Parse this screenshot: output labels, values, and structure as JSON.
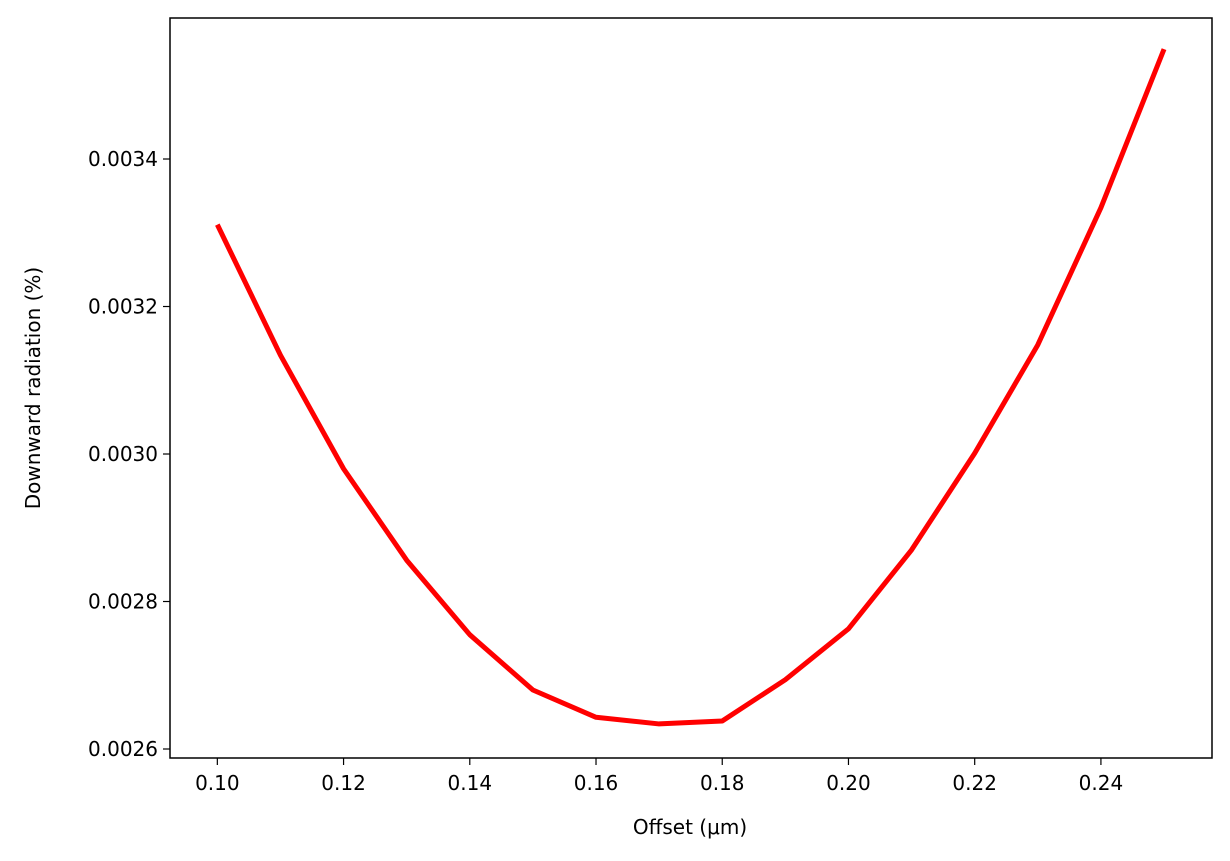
{
  "chart_data": {
    "type": "line",
    "x": [
      0.1,
      0.11,
      0.12,
      0.13,
      0.14,
      0.15,
      0.16,
      0.17,
      0.18,
      0.19,
      0.2,
      0.21,
      0.22,
      0.23,
      0.24,
      0.25
    ],
    "series": [
      {
        "color": "#ff0000",
        "values": [
          0.003311,
          0.003134,
          0.00298,
          0.002856,
          0.002755,
          0.00268,
          0.002643,
          0.002634,
          0.002638,
          0.002694,
          0.002763,
          0.00287,
          0.003001,
          0.003148,
          0.003334,
          0.003549
        ]
      }
    ],
    "x_label": "Offset (μm)",
    "y_label": "Downward radiation (%)",
    "xlim": [
      0.0925,
      0.2576
    ],
    "ylim": [
      0.0025878,
      0.0035912
    ],
    "xticks": [
      {
        "value": 0.1,
        "label": "0.10"
      },
      0.12,
      0.14,
      0.16,
      0.18,
      {
        "value": 0.2,
        "label": "0.20"
      },
      0.22,
      0.24
    ],
    "yticks": [
      0.0026,
      0.0028,
      {
        "value": 0.003,
        "label": "0.0030"
      },
      0.0032,
      0.0034
    ],
    "grid": false
  }
}
